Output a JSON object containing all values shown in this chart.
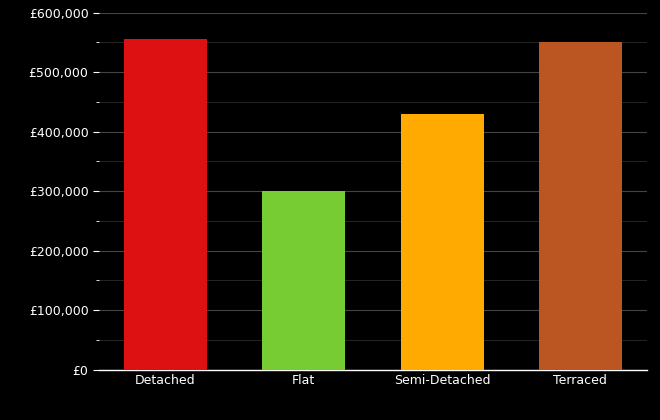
{
  "categories": [
    "Detached",
    "Flat",
    "Semi-Detached",
    "Terraced"
  ],
  "values": [
    555000,
    300000,
    430000,
    550000
  ],
  "bar_colors": [
    "#dd1111",
    "#77cc33",
    "#ffaa00",
    "#bb5522"
  ],
  "background_color": "#000000",
  "text_color": "#ffffff",
  "grid_color": "#444444",
  "minor_grid_color": "#333333",
  "ylim": [
    0,
    600000
  ],
  "yticks": [
    0,
    100000,
    200000,
    300000,
    400000,
    500000,
    600000
  ],
  "bar_width": 0.6,
  "figsize": [
    6.6,
    4.2
  ],
  "dpi": 100
}
